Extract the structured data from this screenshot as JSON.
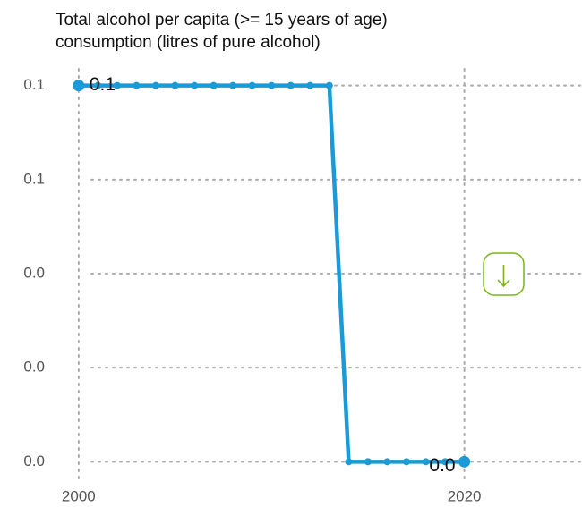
{
  "chart_data": {
    "type": "line",
    "title": [
      "Total alcohol per capita (>= 15 years of age)",
      "consumption (litres of pure alcohol)"
    ],
    "x": [
      2000,
      2001,
      2002,
      2003,
      2004,
      2005,
      2006,
      2007,
      2008,
      2009,
      2010,
      2011,
      2012,
      2013,
      2014,
      2015,
      2016,
      2017,
      2018,
      2019,
      2020
    ],
    "series": [
      {
        "name": "Total alcohol per capita",
        "color": "#1a9bd7",
        "values": [
          0.08,
          0.08,
          0.08,
          0.08,
          0.08,
          0.08,
          0.08,
          0.08,
          0.08,
          0.08,
          0.08,
          0.08,
          0.08,
          0.08,
          0,
          0,
          0,
          0,
          0,
          0,
          0
        ],
        "value_labels": [
          "0.1",
          null,
          null,
          null,
          null,
          null,
          null,
          null,
          null,
          null,
          null,
          null,
          null,
          null,
          null,
          null,
          null,
          null,
          null,
          null,
          "0.0"
        ]
      }
    ],
    "xlim": [
      1998.8,
      2026.1
    ],
    "xticks": [
      2000,
      2020
    ],
    "ylim": [
      -0.0045,
      0.0845
    ],
    "yticks": [
      {
        "value": 0,
        "label": "0.0"
      },
      {
        "value": 0.02,
        "label": "0.0"
      },
      {
        "value": 0.04,
        "label": "0.0"
      },
      {
        "value": 0.06,
        "label": "0.1"
      },
      {
        "value": 0.08,
        "label": "0.1"
      }
    ],
    "grid": true
  }
}
